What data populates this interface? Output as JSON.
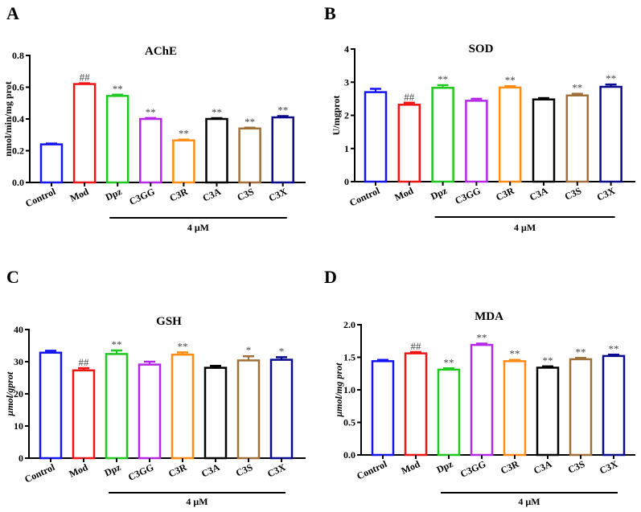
{
  "colors": {
    "Control": "#1414f0",
    "Mod": "#f01414",
    "Dpz": "#1ec81e",
    "C3GG": "#b428e6",
    "C3R": "#ff8c14",
    "C3A": "#000000",
    "C3S": "#a0703a",
    "C3X": "#0a0a8c"
  },
  "chart_data": [
    {
      "panel": "A",
      "type": "bar",
      "title": "AChE",
      "xlabel": "",
      "ylabel": "nmol/min/mg prot",
      "ylabel_italic": false,
      "ylim": [
        0,
        0.8
      ],
      "yticks": [
        "0.0",
        "0.2",
        "0.4",
        "0.6",
        "0.8"
      ],
      "ytick_values": [
        0,
        0.2,
        0.4,
        0.6,
        0.8
      ],
      "categories": [
        "Control",
        "Mod",
        "Dpz",
        "C3GG",
        "C3R",
        "C3A",
        "C3S",
        "C3X"
      ],
      "values": [
        0.24,
        0.62,
        0.545,
        0.4,
        0.265,
        0.4,
        0.34,
        0.41
      ],
      "errors": [
        0.005,
        0.005,
        0.008,
        0.006,
        0.005,
        0.005,
        0.005,
        0.008
      ],
      "significance": [
        "",
        "##",
        "**",
        "**",
        "**",
        "**",
        "**",
        "**"
      ],
      "group_bracket": {
        "label": "4 μM",
        "from": "Dpz",
        "to": "C3X"
      }
    },
    {
      "panel": "B",
      "type": "bar",
      "title": "SOD",
      "xlabel": "",
      "ylabel": "U/mgprot",
      "ylabel_italic": false,
      "ylim": [
        0,
        4
      ],
      "yticks": [
        "0",
        "1",
        "2",
        "3",
        "4"
      ],
      "ytick_values": [
        0,
        1,
        2,
        3,
        4
      ],
      "categories": [
        "Control",
        "Mod",
        "Dpz",
        "C3GG",
        "C3R",
        "C3A",
        "C3S",
        "C3X"
      ],
      "values": [
        2.7,
        2.32,
        2.83,
        2.44,
        2.84,
        2.48,
        2.6,
        2.86
      ],
      "errors": [
        0.1,
        0.06,
        0.08,
        0.06,
        0.04,
        0.04,
        0.05,
        0.07
      ],
      "significance": [
        "",
        "##",
        "**",
        "",
        "**",
        "",
        "**",
        "**"
      ],
      "group_bracket": {
        "label": "4 μM",
        "from": "Dpz",
        "to": "C3X"
      }
    },
    {
      "panel": "C",
      "type": "bar",
      "title": "GSH",
      "xlabel": "",
      "ylabel": "μmol/gprot",
      "ylabel_italic": true,
      "ylim": [
        0,
        40
      ],
      "yticks": [
        "0",
        "10",
        "20",
        "30",
        "40"
      ],
      "ytick_values": [
        0,
        10,
        20,
        30,
        40
      ],
      "categories": [
        "Control",
        "Mod",
        "Dpz",
        "C3GG",
        "C3R",
        "C3A",
        "C3S",
        "C3X"
      ],
      "values": [
        32.8,
        27.3,
        32.4,
        29.1,
        32.2,
        28.1,
        30.4,
        30.6
      ],
      "errors": [
        0.6,
        0.7,
        1.1,
        0.9,
        0.7,
        0.6,
        1.3,
        0.8
      ],
      "significance": [
        "",
        "##",
        "**",
        "",
        "**",
        "",
        "*",
        "*"
      ],
      "group_bracket": {
        "label": "4 μM",
        "from": "Dpz",
        "to": "C3X"
      }
    },
    {
      "panel": "D",
      "type": "bar",
      "title": "MDA",
      "xlabel": "",
      "ylabel": "μmol/mg prot",
      "ylabel_italic": true,
      "ylim": [
        0,
        2.0
      ],
      "yticks": [
        "0.0",
        "0.5",
        "1.0",
        "1.5",
        "2.0"
      ],
      "ytick_values": [
        0,
        0.5,
        1.0,
        1.5,
        2.0
      ],
      "categories": [
        "Control",
        "Mod",
        "Dpz",
        "C3GG",
        "C3R",
        "C3A",
        "C3S",
        "C3X"
      ],
      "values": [
        1.44,
        1.56,
        1.31,
        1.69,
        1.44,
        1.34,
        1.47,
        1.52
      ],
      "errors": [
        0.02,
        0.02,
        0.02,
        0.02,
        0.02,
        0.02,
        0.02,
        0.02
      ],
      "significance": [
        "",
        "##",
        "**",
        "**",
        "**",
        "**",
        "**",
        "**"
      ],
      "group_bracket": {
        "label": "4 μM",
        "from": "Dpz",
        "to": "C3X"
      }
    }
  ]
}
